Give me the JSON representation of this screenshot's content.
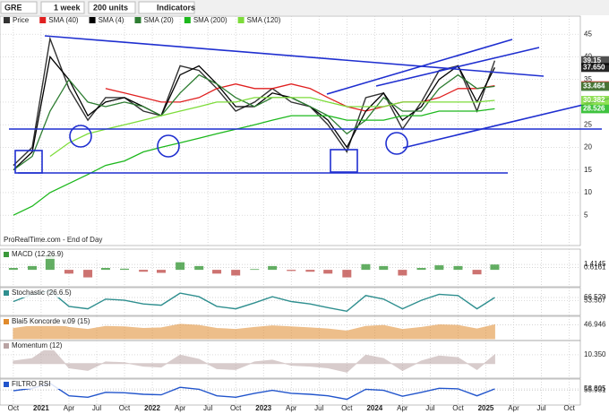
{
  "toolbar": {
    "symbol": "GRE",
    "period": "1 week",
    "units": "200 units",
    "indicators": "Indicators"
  },
  "footer": "ProRealTime.com - End of Day",
  "chart_data": [
    {
      "type": "line",
      "x": [
        2020.75,
        2020.92,
        2021.08,
        2021.25,
        2021.42,
        2021.58,
        2021.75,
        2021.92,
        2022.08,
        2022.25,
        2022.42,
        2022.58,
        2022.75,
        2022.92,
        2023.08,
        2023.25,
        2023.42,
        2023.58,
        2023.75,
        2023.92,
        2024.08,
        2024.25,
        2024.42,
        2024.58,
        2024.75,
        2024.92,
        2025.08
      ],
      "series": [
        {
          "name": "Price",
          "color": "#333333",
          "values": [
            16,
            20,
            44,
            33,
            26,
            31,
            31,
            28,
            27,
            38,
            37,
            33,
            28,
            30,
            33,
            30,
            29,
            25,
            19,
            31,
            32,
            24,
            30,
            37,
            38,
            28,
            39.15
          ]
        },
        {
          "name": "SMA (40)",
          "color": "#e02020",
          "values": [
            null,
            null,
            null,
            null,
            null,
            33,
            32,
            31,
            30,
            30,
            31,
            33,
            34,
            33,
            33,
            34,
            33,
            31,
            29,
            28,
            29,
            30,
            30,
            31,
            33,
            33,
            33.615
          ]
        },
        {
          "name": "SMA (4)",
          "color": "#000000",
          "values": [
            15,
            19,
            40,
            35,
            27,
            30,
            31,
            29,
            27,
            36,
            38,
            34,
            29,
            29,
            32,
            31,
            29,
            26,
            20,
            28,
            32,
            26,
            29,
            35,
            38,
            30,
            37.65
          ],
          "value_labels": [
            null,
            null,
            null,
            null,
            null,
            null,
            null,
            null,
            null,
            null,
            null,
            null,
            null,
            null,
            null,
            null,
            null,
            null,
            null,
            null,
            null,
            null,
            null,
            null,
            null,
            null,
            "37.650"
          ]
        },
        {
          "name": "SMA (20)",
          "color": "#2e7d32",
          "values": [
            15,
            18,
            28,
            35,
            30,
            29,
            30,
            29,
            27,
            32,
            36,
            34,
            31,
            29,
            31,
            31,
            29,
            27,
            23,
            26,
            31,
            28,
            28,
            33,
            36,
            33,
            33.464
          ]
        },
        {
          "name": "SMA (200)",
          "color": "#1db81d",
          "values": [
            5,
            7,
            10,
            12,
            14,
            16,
            17,
            19,
            20,
            21,
            22,
            23,
            24,
            25,
            26,
            27,
            27,
            27,
            26,
            26,
            26,
            27,
            27,
            28,
            28,
            28,
            28.526
          ]
        },
        {
          "name": "SMA (120)",
          "color": "#7ddc3a",
          "values": [
            null,
            null,
            18,
            21,
            23,
            24,
            25,
            26,
            27,
            28,
            29,
            30,
            30,
            31,
            31,
            31,
            31,
            30,
            29,
            29,
            29,
            30,
            30,
            30,
            30,
            30,
            30.382
          ]
        }
      ],
      "xlim": [
        2020.63,
        2025.85
      ],
      "ylim": [
        -1.3,
        48.6
      ],
      "yticks": [
        45,
        40,
        35,
        30,
        25,
        20,
        15,
        10,
        5
      ],
      "grid": true
    },
    {
      "type": "bar",
      "title": "MACD (12.26.9)",
      "color": "#3c9a3c",
      "negative_color": "#c0504d",
      "x": [
        2020.75,
        2020.92,
        2021.08,
        2021.25,
        2021.42,
        2021.58,
        2021.75,
        2021.92,
        2022.08,
        2022.25,
        2022.42,
        2022.58,
        2022.75,
        2022.92,
        2023.08,
        2023.25,
        2023.42,
        2023.58,
        2023.75,
        2023.92,
        2024.08,
        2024.25,
        2024.42,
        2024.58,
        2024.75,
        2024.92,
        2025.08
      ],
      "values": [
        0.5,
        1,
        4,
        -1,
        -2,
        0.5,
        0.3,
        -0.5,
        -0.8,
        2,
        1,
        -1,
        -1.5,
        0.2,
        1,
        -0.3,
        -0.5,
        -1,
        -2,
        1.5,
        1,
        -1.5,
        0.5,
        1.2,
        1,
        -1.2,
        1.4
      ],
      "xlim": [
        2020.63,
        2025.85
      ],
      "ylim": [
        -4,
        5
      ],
      "yticks": [
        1.4145,
        0.6161
      ]
    },
    {
      "type": "line",
      "title": "Stochastic (26.6.5)",
      "color": "#2f8f8f",
      "x": [
        2020.75,
        2020.92,
        2021.08,
        2021.25,
        2021.42,
        2021.58,
        2021.75,
        2021.92,
        2022.08,
        2022.25,
        2022.42,
        2022.58,
        2022.75,
        2022.92,
        2023.08,
        2023.25,
        2023.42,
        2023.58,
        2023.75,
        2023.92,
        2024.08,
        2024.25,
        2024.42,
        2024.58,
        2024.75,
        2024.92,
        2025.08
      ],
      "values": [
        50,
        80,
        95,
        30,
        20,
        60,
        55,
        40,
        35,
        85,
        70,
        30,
        20,
        45,
        70,
        50,
        40,
        25,
        10,
        75,
        60,
        20,
        55,
        80,
        75,
        20,
        66.5
      ],
      "xlim": [
        2020.63,
        2025.85
      ],
      "ylim": [
        0,
        100
      ],
      "yticks": [
        66.529,
        53.507
      ]
    },
    {
      "type": "area",
      "title": "Blai5 Koncorde v.09 (15)",
      "color": "#e08a2c",
      "x": [
        2020.75,
        2020.92,
        2021.08,
        2021.25,
        2021.42,
        2021.58,
        2021.75,
        2021.92,
        2022.08,
        2022.25,
        2022.42,
        2022.58,
        2022.75,
        2022.92,
        2023.08,
        2023.25,
        2023.42,
        2023.58,
        2023.75,
        2023.92,
        2024.08,
        2024.25,
        2024.42,
        2024.58,
        2024.75,
        2024.92,
        2025.08
      ],
      "values": [
        40,
        45,
        50,
        42,
        38,
        44,
        43,
        40,
        41,
        48,
        46,
        40,
        38,
        42,
        45,
        43,
        41,
        39,
        35,
        44,
        46,
        38,
        42,
        47,
        46,
        39,
        47
      ],
      "xlim": [
        2020.63,
        2025.85
      ],
      "ylim": [
        20,
        60
      ],
      "yticks": [
        46.946
      ]
    },
    {
      "type": "area",
      "title": "Momentum (12)",
      "color": "#b9a3a3",
      "x": [
        2020.75,
        2020.92,
        2021.08,
        2021.25,
        2021.42,
        2021.58,
        2021.75,
        2021.92,
        2022.08,
        2022.25,
        2022.42,
        2022.58,
        2022.75,
        2022.92,
        2023.08,
        2023.25,
        2023.42,
        2023.58,
        2023.75,
        2023.92,
        2024.08,
        2024.25,
        2024.42,
        2024.58,
        2024.75,
        2024.92,
        2025.08
      ],
      "values": [
        3,
        6,
        20,
        -5,
        -8,
        2,
        1,
        -3,
        -4,
        10,
        5,
        -6,
        -7,
        2,
        4,
        -2,
        -3,
        -5,
        -10,
        10,
        6,
        -8,
        3,
        9,
        7,
        -7,
        10.35
      ],
      "xlim": [
        2020.63,
        2025.85
      ],
      "ylim": [
        -15,
        25
      ],
      "yticks": [
        {
          "value": 10.35,
          "label": "10.350"
        }
      ]
    },
    {
      "type": "line",
      "title": "FILTRO RSI",
      "color": "#2255cc",
      "x": [
        2020.75,
        2020.92,
        2021.08,
        2021.25,
        2021.42,
        2021.58,
        2021.75,
        2021.92,
        2022.08,
        2022.25,
        2022.42,
        2022.58,
        2022.75,
        2022.92,
        2023.08,
        2023.25,
        2023.42,
        2023.58,
        2023.75,
        2023.92,
        2024.08,
        2024.25,
        2024.42,
        2024.58,
        2024.75,
        2024.92,
        2025.08
      ],
      "values": [
        55,
        60,
        70,
        45,
        42,
        52,
        51,
        48,
        47,
        62,
        58,
        45,
        42,
        50,
        56,
        50,
        48,
        45,
        38,
        58,
        56,
        44,
        52,
        60,
        59,
        45,
        58.8
      ],
      "xlim": [
        2020.63,
        2025.85
      ],
      "ylim": [
        30,
        75
      ],
      "yticks": [
        58.805,
        55.931
      ],
      "xticks": [
        {
          "value": 2020.75,
          "label": "Oct"
        },
        {
          "value": 2021,
          "label": "2021"
        },
        {
          "value": 2021.25,
          "label": "Apr"
        },
        {
          "value": 2021.5,
          "label": "Jul"
        },
        {
          "value": 2021.75,
          "label": "Oct"
        },
        {
          "value": 2022,
          "label": "2022"
        },
        {
          "value": 2022.25,
          "label": "Apr"
        },
        {
          "value": 2022.5,
          "label": "Jul"
        },
        {
          "value": 2022.75,
          "label": "Oct"
        },
        {
          "value": 2023,
          "label": "2023"
        },
        {
          "value": 2023.25,
          "label": "Apr"
        },
        {
          "value": 2023.5,
          "label": "Jul"
        },
        {
          "value": 2023.75,
          "label": "Oct"
        },
        {
          "value": 2024,
          "label": "2024"
        },
        {
          "value": 2024.25,
          "label": "Apr"
        },
        {
          "value": 2024.5,
          "label": "Jul"
        },
        {
          "value": 2024.75,
          "label": "Oct"
        },
        {
          "value": 2025,
          "label": "2025"
        },
        {
          "value": 2025.25,
          "label": "Apr"
        },
        {
          "value": 2025.5,
          "label": "Jul"
        },
        {
          "value": 2025.75,
          "label": "Oct"
        }
      ]
    }
  ]
}
